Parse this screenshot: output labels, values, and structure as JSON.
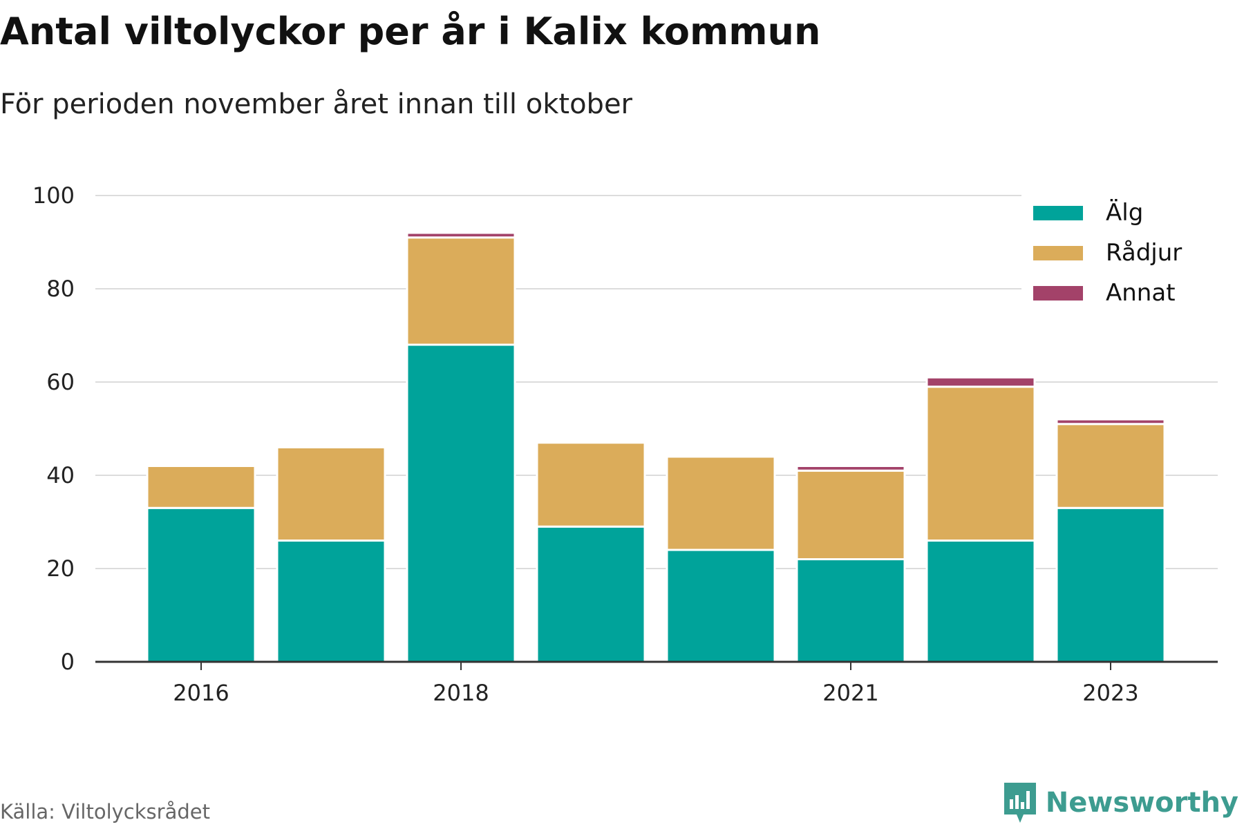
{
  "title": "Antal viltolyckor per år i Kalix kommun",
  "subtitle": "För perioden november året innan till oktober",
  "source": "Källa: Viltolycksrådet",
  "brand": {
    "name": "Newsworthy",
    "icon": "newsworthy-logo-icon",
    "color": "#3d9c90"
  },
  "chart_data": {
    "type": "bar",
    "stacked": true,
    "categories": [
      "2016",
      "2017",
      "2018",
      "2019",
      "2020",
      "2021",
      "2022",
      "2023"
    ],
    "x_tick_labels": [
      "2016",
      "2018",
      "2021",
      "2023"
    ],
    "ylim": [
      0,
      100
    ],
    "y_ticks": [
      0,
      20,
      40,
      60,
      80,
      100
    ],
    "grid": true,
    "legend_position": "top-right",
    "series": [
      {
        "name": "Älg",
        "color": "#00a39a",
        "values": [
          33,
          26,
          68,
          29,
          24,
          22,
          26,
          33
        ]
      },
      {
        "name": "Rådjur",
        "color": "#dbac5a",
        "values": [
          9,
          20,
          23,
          18,
          20,
          19,
          33,
          18
        ]
      },
      {
        "name": "Annat",
        "color": "#a34269",
        "values": [
          0,
          0,
          1,
          0,
          0,
          1,
          2,
          1
        ]
      }
    ]
  }
}
